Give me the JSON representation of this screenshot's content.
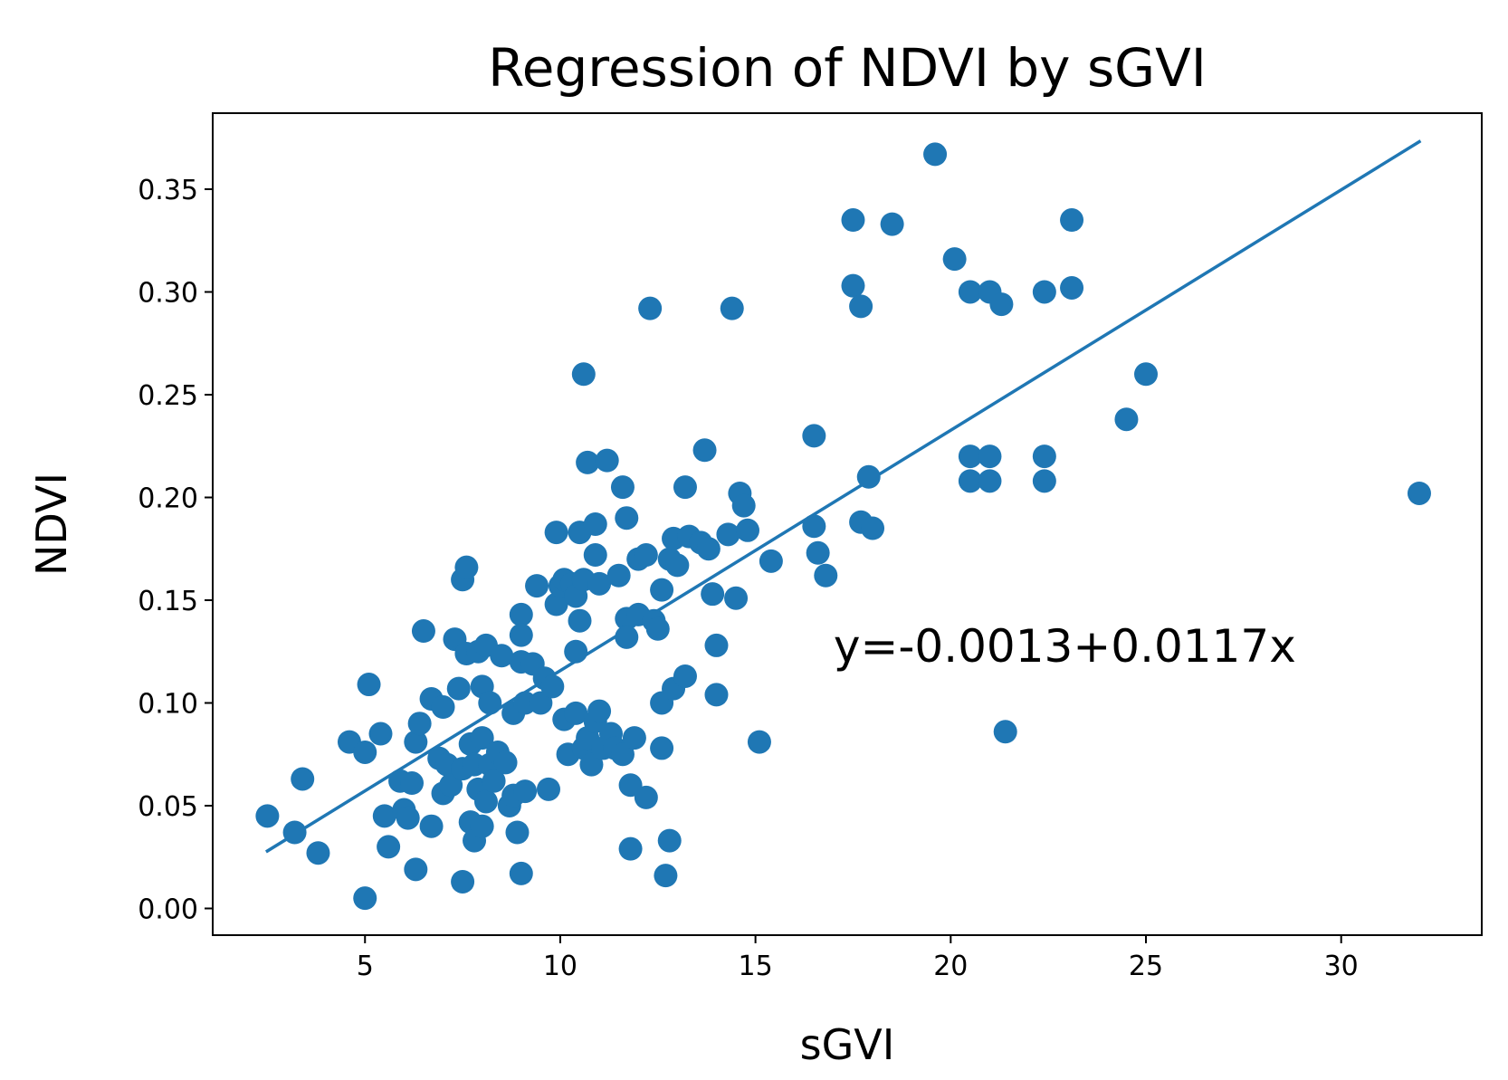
{
  "chart_data": {
    "type": "scatter",
    "title": "Regression of NDVI by sGVI",
    "xlabel": "sGVI",
    "ylabel": "NDVI",
    "xlim": [
      1.1,
      33.6
    ],
    "ylim": [
      -0.013,
      0.387
    ],
    "xticks": [
      5,
      10,
      15,
      20,
      25,
      30
    ],
    "xtick_labels": [
      "5",
      "10",
      "15",
      "20",
      "25",
      "30"
    ],
    "yticks": [
      0,
      0.05,
      0.1,
      0.15,
      0.2,
      0.25,
      0.3,
      0.35
    ],
    "ytick_labels": [
      "0.00",
      "0.05",
      "0.10",
      "0.15",
      "0.20",
      "0.25",
      "0.30",
      "0.35"
    ],
    "grid": false,
    "color": "#1f77b4",
    "annotation": {
      "text": "y=-0.0013+0.0117x",
      "x": 17,
      "y": 0.12
    },
    "regression": {
      "intercept": -0.0013,
      "slope": 0.0117,
      "x_range": [
        2.5,
        32
      ]
    },
    "points": [
      [
        2.5,
        0.045
      ],
      [
        3.2,
        0.037
      ],
      [
        3.4,
        0.063
      ],
      [
        3.8,
        0.027
      ],
      [
        4.6,
        0.081
      ],
      [
        5.0,
        0.076
      ],
      [
        5.0,
        0.005
      ],
      [
        5.1,
        0.109
      ],
      [
        5.4,
        0.085
      ],
      [
        5.5,
        0.045
      ],
      [
        5.6,
        0.03
      ],
      [
        5.9,
        0.062
      ],
      [
        6.0,
        0.048
      ],
      [
        6.1,
        0.044
      ],
      [
        6.2,
        0.061
      ],
      [
        6.3,
        0.081
      ],
      [
        6.3,
        0.019
      ],
      [
        6.4,
        0.09
      ],
      [
        6.5,
        0.135
      ],
      [
        6.7,
        0.102
      ],
      [
        6.7,
        0.04
      ],
      [
        6.9,
        0.073
      ],
      [
        7.0,
        0.056
      ],
      [
        7.0,
        0.098
      ],
      [
        7.1,
        0.07
      ],
      [
        7.2,
        0.06
      ],
      [
        7.3,
        0.131
      ],
      [
        7.4,
        0.107
      ],
      [
        7.5,
        0.16
      ],
      [
        7.5,
        0.068
      ],
      [
        7.5,
        0.013
      ],
      [
        7.6,
        0.166
      ],
      [
        7.6,
        0.124
      ],
      [
        7.7,
        0.08
      ],
      [
        7.7,
        0.042
      ],
      [
        7.8,
        0.07
      ],
      [
        7.8,
        0.033
      ],
      [
        7.9,
        0.058
      ],
      [
        7.9,
        0.125
      ],
      [
        8.0,
        0.083
      ],
      [
        8.0,
        0.108
      ],
      [
        8.0,
        0.04
      ],
      [
        8.1,
        0.052
      ],
      [
        8.1,
        0.128
      ],
      [
        8.2,
        0.1
      ],
      [
        8.2,
        0.07
      ],
      [
        8.3,
        0.062
      ],
      [
        8.4,
        0.076
      ],
      [
        8.5,
        0.123
      ],
      [
        8.6,
        0.071
      ],
      [
        8.7,
        0.05
      ],
      [
        8.8,
        0.095
      ],
      [
        8.8,
        0.055
      ],
      [
        8.9,
        0.037
      ],
      [
        9.0,
        0.12
      ],
      [
        9.0,
        0.143
      ],
      [
        9.0,
        0.133
      ],
      [
        9.0,
        0.017
      ],
      [
        9.1,
        0.1
      ],
      [
        9.1,
        0.057
      ],
      [
        9.3,
        0.119
      ],
      [
        9.4,
        0.157
      ],
      [
        9.5,
        0.1
      ],
      [
        9.6,
        0.112
      ],
      [
        9.7,
        0.058
      ],
      [
        9.8,
        0.108
      ],
      [
        9.9,
        0.183
      ],
      [
        9.9,
        0.148
      ],
      [
        10.0,
        0.157
      ],
      [
        10.1,
        0.16
      ],
      [
        10.1,
        0.092
      ],
      [
        10.2,
        0.075
      ],
      [
        10.3,
        0.158
      ],
      [
        10.4,
        0.125
      ],
      [
        10.4,
        0.095
      ],
      [
        10.4,
        0.152
      ],
      [
        10.5,
        0.183
      ],
      [
        10.5,
        0.14
      ],
      [
        10.6,
        0.16
      ],
      [
        10.6,
        0.078
      ],
      [
        10.6,
        0.26
      ],
      [
        10.7,
        0.217
      ],
      [
        10.7,
        0.083
      ],
      [
        10.8,
        0.07
      ],
      [
        10.9,
        0.187
      ],
      [
        10.9,
        0.172
      ],
      [
        10.9,
        0.091
      ],
      [
        11.0,
        0.158
      ],
      [
        11.0,
        0.096
      ],
      [
        11.1,
        0.078
      ],
      [
        11.2,
        0.218
      ],
      [
        11.3,
        0.085
      ],
      [
        11.4,
        0.078
      ],
      [
        11.5,
        0.162
      ],
      [
        11.6,
        0.205
      ],
      [
        11.6,
        0.075
      ],
      [
        11.7,
        0.19
      ],
      [
        11.7,
        0.141
      ],
      [
        11.7,
        0.132
      ],
      [
        11.8,
        0.06
      ],
      [
        11.8,
        0.029
      ],
      [
        11.9,
        0.083
      ],
      [
        12.0,
        0.143
      ],
      [
        12.0,
        0.17
      ],
      [
        12.2,
        0.172
      ],
      [
        12.2,
        0.054
      ],
      [
        12.3,
        0.292
      ],
      [
        12.4,
        0.14
      ],
      [
        12.5,
        0.136
      ],
      [
        12.6,
        0.1
      ],
      [
        12.6,
        0.155
      ],
      [
        12.6,
        0.078
      ],
      [
        12.7,
        0.016
      ],
      [
        12.8,
        0.033
      ],
      [
        12.8,
        0.17
      ],
      [
        12.9,
        0.107
      ],
      [
        12.9,
        0.18
      ],
      [
        13.0,
        0.167
      ],
      [
        13.2,
        0.205
      ],
      [
        13.2,
        0.113
      ],
      [
        13.3,
        0.181
      ],
      [
        13.6,
        0.178
      ],
      [
        13.7,
        0.223
      ],
      [
        13.8,
        0.175
      ],
      [
        13.9,
        0.153
      ],
      [
        14.0,
        0.128
      ],
      [
        14.0,
        0.104
      ],
      [
        14.3,
        0.182
      ],
      [
        14.4,
        0.292
      ],
      [
        14.5,
        0.151
      ],
      [
        14.6,
        0.202
      ],
      [
        14.7,
        0.196
      ],
      [
        14.8,
        0.184
      ],
      [
        15.1,
        0.081
      ],
      [
        15.4,
        0.169
      ],
      [
        16.5,
        0.23
      ],
      [
        16.5,
        0.186
      ],
      [
        16.6,
        0.173
      ],
      [
        16.8,
        0.162
      ],
      [
        17.5,
        0.335
      ],
      [
        17.5,
        0.303
      ],
      [
        17.7,
        0.293
      ],
      [
        17.7,
        0.188
      ],
      [
        17.9,
        0.21
      ],
      [
        18.0,
        0.185
      ],
      [
        18.5,
        0.333
      ],
      [
        19.6,
        0.367
      ],
      [
        20.1,
        0.316
      ],
      [
        20.5,
        0.3
      ],
      [
        20.5,
        0.22
      ],
      [
        20.5,
        0.208
      ],
      [
        21.0,
        0.3
      ],
      [
        21.0,
        0.22
      ],
      [
        21.0,
        0.208
      ],
      [
        21.3,
        0.294
      ],
      [
        21.4,
        0.086
      ],
      [
        22.4,
        0.3
      ],
      [
        22.4,
        0.22
      ],
      [
        22.4,
        0.208
      ],
      [
        23.1,
        0.335
      ],
      [
        23.1,
        0.302
      ],
      [
        24.5,
        0.238
      ],
      [
        25.0,
        0.26
      ],
      [
        32.0,
        0.202
      ]
    ]
  }
}
